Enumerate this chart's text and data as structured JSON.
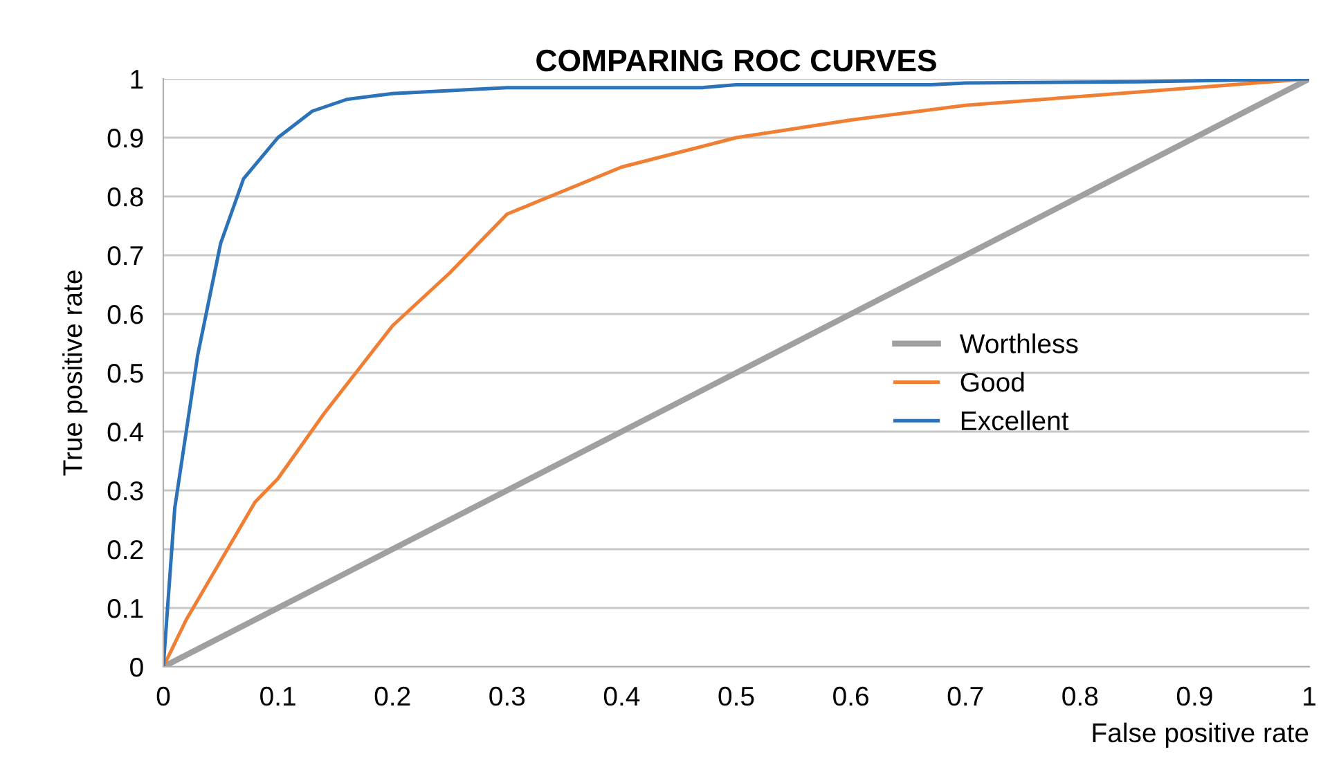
{
  "chart_data": {
    "type": "line",
    "title": "COMPARING ROC CURVES",
    "xlabel": "False positive rate",
    "ylabel": "True positive rate",
    "xlim": [
      0,
      1
    ],
    "ylim": [
      0,
      1
    ],
    "xticks": [
      0,
      0.1,
      0.2,
      0.3,
      0.4,
      0.5,
      0.6,
      0.7,
      0.8,
      0.9,
      1
    ],
    "yticks": [
      0,
      0.1,
      0.2,
      0.3,
      0.4,
      0.5,
      0.6,
      0.7,
      0.8,
      0.9,
      1
    ],
    "grid": "y",
    "legend": "right",
    "marker": "none",
    "line_style": "solid",
    "series": [
      {
        "name": "Worthless",
        "color": "#a0a0a0",
        "x": [
          0,
          0.1,
          0.2,
          0.3,
          0.4,
          0.5,
          0.6,
          0.7,
          0.8,
          0.9,
          1
        ],
        "values": [
          0,
          0.1,
          0.2,
          0.3,
          0.4,
          0.5,
          0.6,
          0.7,
          0.8,
          0.9,
          1
        ]
      },
      {
        "name": "Good",
        "color": "#f07f33",
        "x": [
          0,
          0.02,
          0.05,
          0.08,
          0.1,
          0.14,
          0.2,
          0.25,
          0.3,
          0.35,
          0.4,
          0.45,
          0.5,
          0.55,
          0.6,
          0.7,
          0.8,
          0.9,
          1
        ],
        "values": [
          0,
          0.08,
          0.18,
          0.28,
          0.32,
          0.43,
          0.58,
          0.67,
          0.77,
          0.81,
          0.85,
          0.875,
          0.9,
          0.915,
          0.93,
          0.955,
          0.97,
          0.985,
          1
        ]
      },
      {
        "name": "Excellent",
        "color": "#2b72b8",
        "x": [
          0,
          0.01,
          0.03,
          0.05,
          0.07,
          0.1,
          0.13,
          0.16,
          0.2,
          0.3,
          0.47,
          0.5,
          0.67,
          0.7,
          0.85,
          1
        ],
        "values": [
          0,
          0.27,
          0.53,
          0.72,
          0.83,
          0.9,
          0.945,
          0.965,
          0.975,
          0.985,
          0.985,
          0.99,
          0.99,
          0.993,
          0.995,
          1
        ]
      }
    ]
  }
}
